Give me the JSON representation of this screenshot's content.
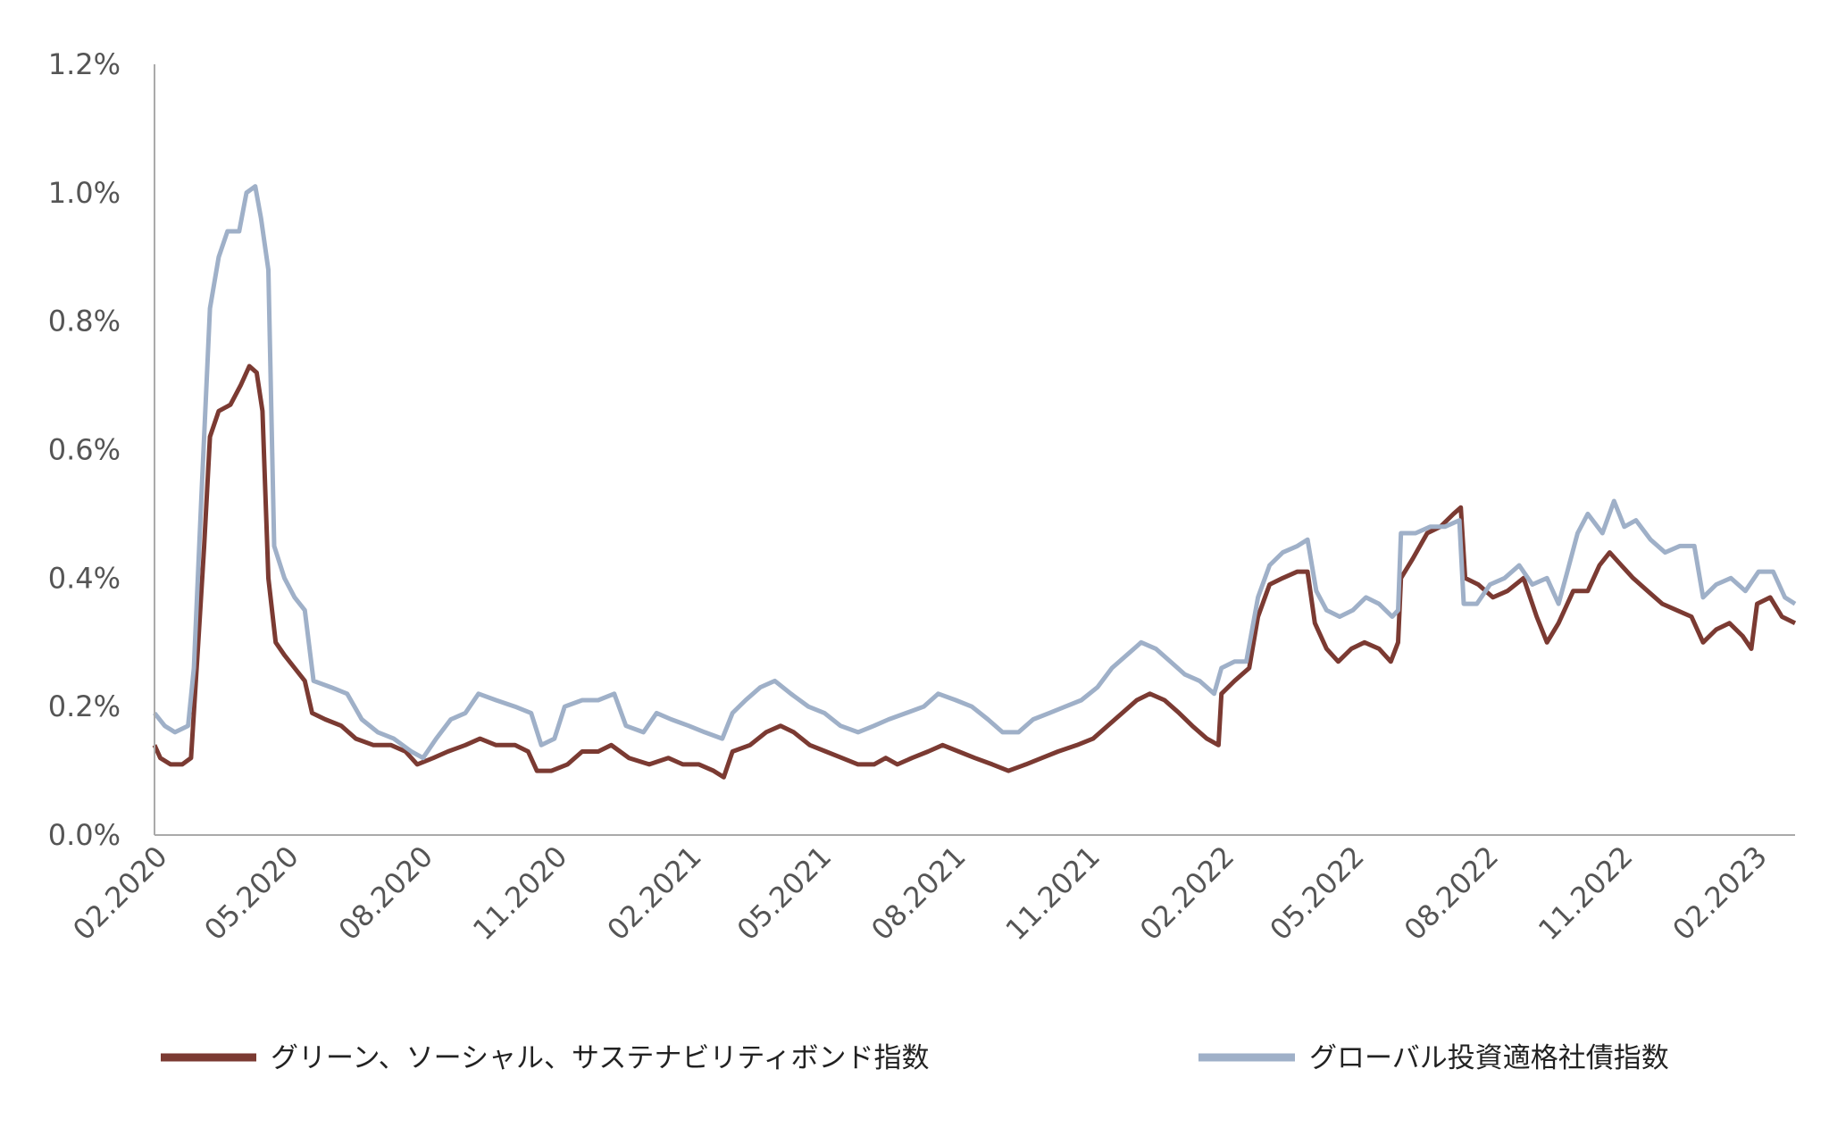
{
  "chart_data": {
    "type": "line",
    "title": "",
    "xlabel": "",
    "ylabel": "",
    "ylim": [
      0,
      1.2
    ],
    "yticks": [
      {
        "value": 0.0,
        "label": "0.0%"
      },
      {
        "value": 0.2,
        "label": "0.2%"
      },
      {
        "value": 0.4,
        "label": "0.4%"
      },
      {
        "value": 0.6,
        "label": "0.6%"
      },
      {
        "value": 0.8,
        "label": "0.8%"
      },
      {
        "value": 1.0,
        "label": "1.0%"
      },
      {
        "value": 1.2,
        "label": "1.2%"
      }
    ],
    "xlim": [
      "2020-02-01",
      "2023-03-01"
    ],
    "xticks": [
      {
        "value": "2020-02-01",
        "label": "02.2020"
      },
      {
        "value": "2020-05-01",
        "label": "05.2020"
      },
      {
        "value": "2020-08-01",
        "label": "08.2020"
      },
      {
        "value": "2020-11-01",
        "label": "11.2020"
      },
      {
        "value": "2021-02-01",
        "label": "02.2021"
      },
      {
        "value": "2021-05-01",
        "label": "05.2021"
      },
      {
        "value": "2021-08-01",
        "label": "08.2021"
      },
      {
        "value": "2021-11-01",
        "label": "11.2021"
      },
      {
        "value": "2022-02-01",
        "label": "02.2022"
      },
      {
        "value": "2022-05-01",
        "label": "05.2022"
      },
      {
        "value": "2022-08-01",
        "label": "08.2022"
      },
      {
        "value": "2022-11-01",
        "label": "11.2022"
      },
      {
        "value": "2023-02-01",
        "label": "02.2023"
      }
    ],
    "grid": false,
    "legend_position": "bottom",
    "series": [
      {
        "name": "グリーン、ソーシャル、サステナビリティボンド指数",
        "color": "#7b3a32",
        "points": [
          [
            "2020-02-01",
            0.14
          ],
          [
            "2020-02-05",
            0.12
          ],
          [
            "2020-02-12",
            0.11
          ],
          [
            "2020-02-20",
            0.11
          ],
          [
            "2020-02-26",
            0.12
          ],
          [
            "2020-03-02",
            0.3
          ],
          [
            "2020-03-06",
            0.45
          ],
          [
            "2020-03-10",
            0.62
          ],
          [
            "2020-03-16",
            0.66
          ],
          [
            "2020-03-24",
            0.67
          ],
          [
            "2020-03-31",
            0.7
          ],
          [
            "2020-04-06",
            0.73
          ],
          [
            "2020-04-11",
            0.72
          ],
          [
            "2020-04-15",
            0.66
          ],
          [
            "2020-04-19",
            0.4
          ],
          [
            "2020-04-24",
            0.3
          ],
          [
            "2020-04-30",
            0.28
          ],
          [
            "2020-05-07",
            0.26
          ],
          [
            "2020-05-14",
            0.24
          ],
          [
            "2020-05-19",
            0.19
          ],
          [
            "2020-05-28",
            0.18
          ],
          [
            "2020-06-08",
            0.17
          ],
          [
            "2020-06-18",
            0.15
          ],
          [
            "2020-06-30",
            0.14
          ],
          [
            "2020-07-12",
            0.14
          ],
          [
            "2020-07-22",
            0.13
          ],
          [
            "2020-07-30",
            0.11
          ],
          [
            "2020-08-10",
            0.12
          ],
          [
            "2020-08-20",
            0.13
          ],
          [
            "2020-09-01",
            0.14
          ],
          [
            "2020-09-11",
            0.15
          ],
          [
            "2020-09-22",
            0.14
          ],
          [
            "2020-10-05",
            0.14
          ],
          [
            "2020-10-14",
            0.13
          ],
          [
            "2020-10-20",
            0.1
          ],
          [
            "2020-10-30",
            0.1
          ],
          [
            "2020-11-10",
            0.11
          ],
          [
            "2020-11-20",
            0.13
          ],
          [
            "2020-12-01",
            0.13
          ],
          [
            "2020-12-10",
            0.14
          ],
          [
            "2020-12-22",
            0.12
          ],
          [
            "2021-01-05",
            0.11
          ],
          [
            "2021-01-18",
            0.12
          ],
          [
            "2021-01-28",
            0.11
          ],
          [
            "2021-02-08",
            0.11
          ],
          [
            "2021-02-18",
            0.1
          ],
          [
            "2021-02-25",
            0.09
          ],
          [
            "2021-03-03",
            0.13
          ],
          [
            "2021-03-15",
            0.14
          ],
          [
            "2021-03-26",
            0.16
          ],
          [
            "2021-04-05",
            0.17
          ],
          [
            "2021-04-14",
            0.16
          ],
          [
            "2021-04-25",
            0.14
          ],
          [
            "2021-05-06",
            0.13
          ],
          [
            "2021-05-17",
            0.12
          ],
          [
            "2021-05-28",
            0.11
          ],
          [
            "2021-06-08",
            0.11
          ],
          [
            "2021-06-16",
            0.12
          ],
          [
            "2021-06-24",
            0.11
          ],
          [
            "2021-07-04",
            0.12
          ],
          [
            "2021-07-15",
            0.13
          ],
          [
            "2021-07-25",
            0.14
          ],
          [
            "2021-08-05",
            0.13
          ],
          [
            "2021-08-16",
            0.12
          ],
          [
            "2021-08-28",
            0.11
          ],
          [
            "2021-09-08",
            0.1
          ],
          [
            "2021-09-20",
            0.11
          ],
          [
            "2021-10-01",
            0.12
          ],
          [
            "2021-10-12",
            0.13
          ],
          [
            "2021-10-25",
            0.14
          ],
          [
            "2021-11-05",
            0.15
          ],
          [
            "2021-11-15",
            0.17
          ],
          [
            "2021-11-25",
            0.19
          ],
          [
            "2021-12-05",
            0.21
          ],
          [
            "2021-12-14",
            0.22
          ],
          [
            "2021-12-24",
            0.21
          ],
          [
            "2022-01-03",
            0.19
          ],
          [
            "2022-01-12",
            0.17
          ],
          [
            "2022-01-22",
            0.15
          ],
          [
            "2022-01-30",
            0.14
          ],
          [
            "2022-02-01",
            0.22
          ],
          [
            "2022-02-10",
            0.24
          ],
          [
            "2022-02-20",
            0.26
          ],
          [
            "2022-02-26",
            0.34
          ],
          [
            "2022-03-06",
            0.39
          ],
          [
            "2022-03-15",
            0.4
          ],
          [
            "2022-03-25",
            0.41
          ],
          [
            "2022-04-01",
            0.41
          ],
          [
            "2022-04-06",
            0.33
          ],
          [
            "2022-04-14",
            0.29
          ],
          [
            "2022-04-22",
            0.27
          ],
          [
            "2022-05-01",
            0.29
          ],
          [
            "2022-05-10",
            0.3
          ],
          [
            "2022-05-20",
            0.29
          ],
          [
            "2022-05-28",
            0.27
          ],
          [
            "2022-06-02",
            0.3
          ],
          [
            "2022-06-04",
            0.4
          ],
          [
            "2022-06-12",
            0.43
          ],
          [
            "2022-06-22",
            0.47
          ],
          [
            "2022-07-01",
            0.48
          ],
          [
            "2022-07-10",
            0.5
          ],
          [
            "2022-07-15",
            0.51
          ],
          [
            "2022-07-18",
            0.4
          ],
          [
            "2022-07-27",
            0.39
          ],
          [
            "2022-08-06",
            0.37
          ],
          [
            "2022-08-16",
            0.38
          ],
          [
            "2022-08-27",
            0.4
          ],
          [
            "2022-09-05",
            0.34
          ],
          [
            "2022-09-12",
            0.3
          ],
          [
            "2022-09-20",
            0.33
          ],
          [
            "2022-09-30",
            0.38
          ],
          [
            "2022-10-10",
            0.38
          ],
          [
            "2022-10-18",
            0.42
          ],
          [
            "2022-10-25",
            0.44
          ],
          [
            "2022-11-02",
            0.42
          ],
          [
            "2022-11-10",
            0.4
          ],
          [
            "2022-11-20",
            0.38
          ],
          [
            "2022-11-30",
            0.36
          ],
          [
            "2022-12-10",
            0.35
          ],
          [
            "2022-12-20",
            0.34
          ],
          [
            "2022-12-28",
            0.3
          ],
          [
            "2023-01-06",
            0.32
          ],
          [
            "2023-01-15",
            0.33
          ],
          [
            "2023-01-24",
            0.31
          ],
          [
            "2023-01-30",
            0.29
          ],
          [
            "2023-02-03",
            0.36
          ],
          [
            "2023-02-12",
            0.37
          ],
          [
            "2023-02-20",
            0.34
          ],
          [
            "2023-03-01",
            0.33
          ]
        ]
      },
      {
        "name": "グローバル投資適格社債指数",
        "color": "#9fb0c8",
        "points": [
          [
            "2020-02-01",
            0.19
          ],
          [
            "2020-02-08",
            0.17
          ],
          [
            "2020-02-15",
            0.16
          ],
          [
            "2020-02-24",
            0.17
          ],
          [
            "2020-02-28",
            0.26
          ],
          [
            "2020-03-04",
            0.52
          ],
          [
            "2020-03-10",
            0.82
          ],
          [
            "2020-03-16",
            0.9
          ],
          [
            "2020-03-22",
            0.94
          ],
          [
            "2020-03-30",
            0.94
          ],
          [
            "2020-04-04",
            1.0
          ],
          [
            "2020-04-10",
            1.01
          ],
          [
            "2020-04-14",
            0.96
          ],
          [
            "2020-04-19",
            0.88
          ],
          [
            "2020-04-23",
            0.45
          ],
          [
            "2020-04-30",
            0.4
          ],
          [
            "2020-05-07",
            0.37
          ],
          [
            "2020-05-14",
            0.35
          ],
          [
            "2020-05-20",
            0.24
          ],
          [
            "2020-06-01",
            0.23
          ],
          [
            "2020-06-12",
            0.22
          ],
          [
            "2020-06-22",
            0.18
          ],
          [
            "2020-07-03",
            0.16
          ],
          [
            "2020-07-14",
            0.15
          ],
          [
            "2020-07-26",
            0.13
          ],
          [
            "2020-08-03",
            0.12
          ],
          [
            "2020-08-12",
            0.15
          ],
          [
            "2020-08-22",
            0.18
          ],
          [
            "2020-09-01",
            0.19
          ],
          [
            "2020-09-10",
            0.22
          ],
          [
            "2020-09-22",
            0.21
          ],
          [
            "2020-10-05",
            0.2
          ],
          [
            "2020-10-16",
            0.19
          ],
          [
            "2020-10-23",
            0.14
          ],
          [
            "2020-11-01",
            0.15
          ],
          [
            "2020-11-08",
            0.2
          ],
          [
            "2020-11-20",
            0.21
          ],
          [
            "2020-12-01",
            0.21
          ],
          [
            "2020-12-12",
            0.22
          ],
          [
            "2020-12-20",
            0.17
          ],
          [
            "2021-01-01",
            0.16
          ],
          [
            "2021-01-10",
            0.19
          ],
          [
            "2021-01-20",
            0.18
          ],
          [
            "2021-02-01",
            0.17
          ],
          [
            "2021-02-12",
            0.16
          ],
          [
            "2021-02-24",
            0.15
          ],
          [
            "2021-03-03",
            0.19
          ],
          [
            "2021-03-12",
            0.21
          ],
          [
            "2021-03-22",
            0.23
          ],
          [
            "2021-04-01",
            0.24
          ],
          [
            "2021-04-12",
            0.22
          ],
          [
            "2021-04-24",
            0.2
          ],
          [
            "2021-05-05",
            0.19
          ],
          [
            "2021-05-16",
            0.17
          ],
          [
            "2021-05-28",
            0.16
          ],
          [
            "2021-06-08",
            0.17
          ],
          [
            "2021-06-18",
            0.18
          ],
          [
            "2021-06-30",
            0.19
          ],
          [
            "2021-07-12",
            0.2
          ],
          [
            "2021-07-22",
            0.22
          ],
          [
            "2021-08-03",
            0.21
          ],
          [
            "2021-08-14",
            0.2
          ],
          [
            "2021-08-25",
            0.18
          ],
          [
            "2021-09-04",
            0.16
          ],
          [
            "2021-09-15",
            0.16
          ],
          [
            "2021-09-25",
            0.18
          ],
          [
            "2021-10-06",
            0.19
          ],
          [
            "2021-10-17",
            0.2
          ],
          [
            "2021-10-28",
            0.21
          ],
          [
            "2021-11-08",
            0.23
          ],
          [
            "2021-11-18",
            0.26
          ],
          [
            "2021-11-28",
            0.28
          ],
          [
            "2021-12-08",
            0.3
          ],
          [
            "2021-12-18",
            0.29
          ],
          [
            "2021-12-28",
            0.27
          ],
          [
            "2022-01-07",
            0.25
          ],
          [
            "2022-01-17",
            0.24
          ],
          [
            "2022-01-27",
            0.22
          ],
          [
            "2022-02-01",
            0.26
          ],
          [
            "2022-02-10",
            0.27
          ],
          [
            "2022-02-18",
            0.27
          ],
          [
            "2022-02-26",
            0.37
          ],
          [
            "2022-03-06",
            0.42
          ],
          [
            "2022-03-15",
            0.44
          ],
          [
            "2022-03-25",
            0.45
          ],
          [
            "2022-04-01",
            0.46
          ],
          [
            "2022-04-07",
            0.38
          ],
          [
            "2022-04-14",
            0.35
          ],
          [
            "2022-04-23",
            0.34
          ],
          [
            "2022-05-02",
            0.35
          ],
          [
            "2022-05-11",
            0.37
          ],
          [
            "2022-05-20",
            0.36
          ],
          [
            "2022-05-29",
            0.34
          ],
          [
            "2022-06-02",
            0.35
          ],
          [
            "2022-06-04",
            0.47
          ],
          [
            "2022-06-14",
            0.47
          ],
          [
            "2022-06-24",
            0.48
          ],
          [
            "2022-07-04",
            0.48
          ],
          [
            "2022-07-14",
            0.49
          ],
          [
            "2022-07-17",
            0.36
          ],
          [
            "2022-07-26",
            0.36
          ],
          [
            "2022-08-04",
            0.39
          ],
          [
            "2022-08-14",
            0.4
          ],
          [
            "2022-08-24",
            0.42
          ],
          [
            "2022-09-02",
            0.39
          ],
          [
            "2022-09-12",
            0.4
          ],
          [
            "2022-09-20",
            0.36
          ],
          [
            "2022-09-26",
            0.41
          ],
          [
            "2022-10-03",
            0.47
          ],
          [
            "2022-10-10",
            0.5
          ],
          [
            "2022-10-20",
            0.47
          ],
          [
            "2022-10-28",
            0.52
          ],
          [
            "2022-11-04",
            0.48
          ],
          [
            "2022-11-12",
            0.49
          ],
          [
            "2022-11-22",
            0.46
          ],
          [
            "2022-12-02",
            0.44
          ],
          [
            "2022-12-12",
            0.45
          ],
          [
            "2022-12-22",
            0.45
          ],
          [
            "2022-12-28",
            0.37
          ],
          [
            "2023-01-06",
            0.39
          ],
          [
            "2023-01-16",
            0.4
          ],
          [
            "2023-01-26",
            0.38
          ],
          [
            "2023-02-04",
            0.41
          ],
          [
            "2023-02-14",
            0.41
          ],
          [
            "2023-02-22",
            0.37
          ],
          [
            "2023-03-01",
            0.36
          ]
        ]
      }
    ]
  }
}
